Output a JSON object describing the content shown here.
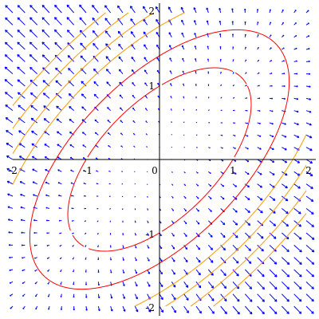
{
  "chart_data": {
    "type": "vector_field_with_contours",
    "title": "",
    "xlabel": "",
    "ylabel": "",
    "xlim": [
      -2,
      2
    ],
    "ylim": [
      -2,
      2
    ],
    "grid": false,
    "x_ticks": [
      {
        "value": -2,
        "label": "-2"
      },
      {
        "value": -1,
        "label": "-1"
      },
      {
        "value": 0,
        "label": "0"
      },
      {
        "value": 1,
        "label": "1"
      },
      {
        "value": 2,
        "label": "2"
      }
    ],
    "y_ticks": [
      {
        "value": -2,
        "label": "-2"
      },
      {
        "value": -1,
        "label": "-1"
      },
      {
        "value": 1,
        "label": "1"
      },
      {
        "value": 2,
        "label": "2"
      }
    ],
    "field": {
      "expression": "(d/dx, d/dy) of x^2 - 1.2*x*y + y^2",
      "grid_n": 25,
      "color": "#0000ff"
    },
    "contours": {
      "function": "x^2 - 1.2*x*y + y^2",
      "levels": [
        {
          "value": 1.0,
          "color": "#ff0000"
        },
        {
          "value": 2.0,
          "color": "#ff0000"
        },
        {
          "value": 3.3,
          "color": "#ff9900"
        },
        {
          "value": 4.2,
          "color": "#ff9900"
        },
        {
          "value": 5.2,
          "color": "#ff9900"
        },
        {
          "value": 6.3,
          "color": "#ff9900"
        }
      ]
    },
    "colors": {
      "axes": "#000000",
      "field": "#0000ff",
      "inner_contours": "#ff0000",
      "outer_contours": "#ff9900"
    }
  }
}
